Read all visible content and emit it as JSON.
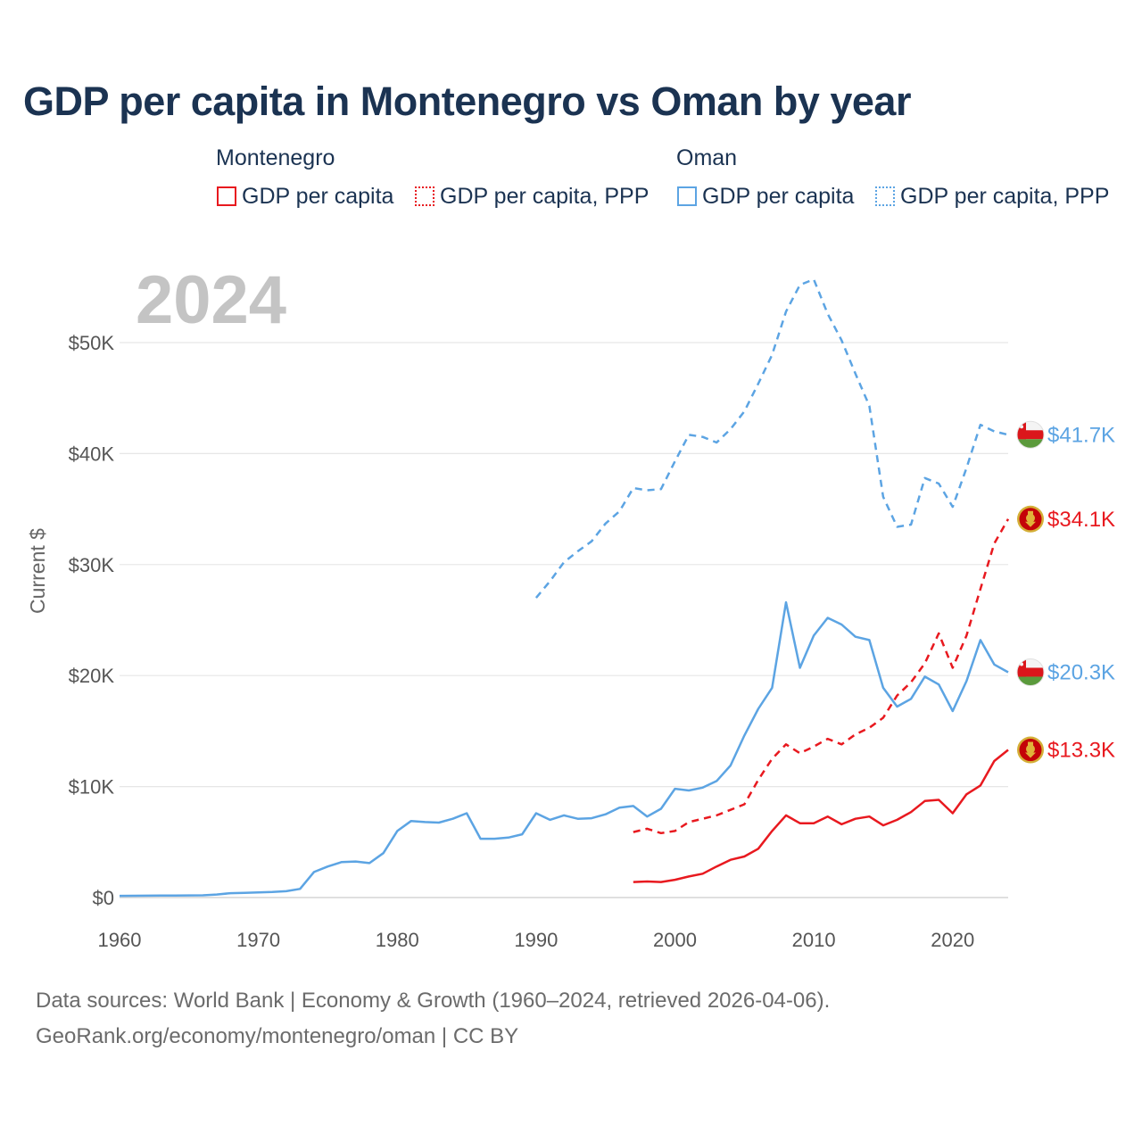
{
  "title": "GDP per capita in Montenegro vs Oman by year",
  "legend": {
    "groups": [
      {
        "name": "Montenegro",
        "items": [
          "GDP per capita",
          "GDP per capita, PPP"
        ]
      },
      {
        "name": "Oman",
        "items": [
          "GDP per capita",
          "GDP per capita, PPP"
        ]
      }
    ]
  },
  "colors": {
    "montenegro": "#e8191f",
    "oman": "#5ca4e3",
    "grid": "#e6e6e6",
    "axis": "#cccccc"
  },
  "footer": {
    "line1": "Data sources: World Bank | Economy & Growth (1960–2024, retrieved 2026-04-06).",
    "line2": "GeoRank.org/economy/montenegro/oman | CC BY"
  },
  "chart_data": {
    "type": "line",
    "year_display": "2024",
    "ylabel": "Current $",
    "xlim": [
      1960,
      2024
    ],
    "ylim": [
      0,
      56000
    ],
    "x_ticks": [
      1960,
      1970,
      1980,
      1990,
      2000,
      2010,
      2020
    ],
    "x_tick_labels": [
      "1960",
      "1970",
      "1980",
      "1990",
      "2000",
      "2010",
      "2020"
    ],
    "y_ticks": [
      0,
      10000,
      20000,
      30000,
      40000,
      50000
    ],
    "y_tick_labels": [
      "$0",
      "$10K",
      "$20K",
      "$30K",
      "$40K",
      "$50K"
    ],
    "series": [
      {
        "key": "omn_ppp",
        "name": "Oman GDP per capita, PPP",
        "country": "oman",
        "style": "dashed",
        "end_label": "$41.7K",
        "start_year": 1990,
        "values": [
          27000,
          28500,
          30200,
          31200,
          32100,
          33700,
          34800,
          36900,
          36700,
          36800,
          39300,
          41700,
          41500,
          41000,
          42200,
          43800,
          46300,
          48900,
          52800,
          55200,
          55700,
          52600,
          50200,
          47200,
          44300,
          36100,
          33400,
          33600,
          37800,
          37300,
          35200,
          38700,
          42600,
          42000,
          41700
        ]
      },
      {
        "key": "mne_ppp",
        "name": "Montenegro GDP per capita, PPP",
        "country": "montenegro",
        "style": "dashed",
        "end_label": "$34.1K",
        "start_year": 1997,
        "values": [
          5900,
          6200,
          5800,
          6000,
          6800,
          7100,
          7400,
          7900,
          8400,
          10600,
          12500,
          13800,
          13000,
          13600,
          14300,
          13800,
          14700,
          15300,
          16200,
          18200,
          19400,
          21100,
          23800,
          20700,
          23600,
          27800,
          31900,
          34100
        ]
      },
      {
        "key": "omn_gdp",
        "name": "Oman GDP per capita",
        "country": "oman",
        "style": "solid",
        "end_label": "$20.3K",
        "start_year": 1960,
        "values": [
          150,
          160,
          170,
          180,
          180,
          190,
          200,
          270,
          390,
          430,
          460,
          500,
          570,
          780,
          2300,
          2800,
          3200,
          3250,
          3100,
          4000,
          6000,
          6900,
          6800,
          6750,
          7100,
          7600,
          5300,
          5300,
          5400,
          5700,
          7600,
          7000,
          7400,
          7100,
          7150,
          7500,
          8100,
          8250,
          7300,
          8000,
          9800,
          9650,
          9900,
          10500,
          11900,
          14600,
          17000,
          18900,
          26600,
          20700,
          23600,
          25200,
          24600,
          23500,
          23200,
          18900,
          17200,
          17900,
          19900,
          19200,
          16800,
          19500,
          23200,
          21000,
          20300
        ]
      },
      {
        "key": "mne_gdp",
        "name": "Montenegro GDP per capita",
        "country": "montenegro",
        "style": "solid",
        "end_label": "$13.3K",
        "start_year": 1997,
        "values": [
          1400,
          1450,
          1400,
          1600,
          1900,
          2150,
          2800,
          3400,
          3700,
          4400,
          6000,
          7400,
          6700,
          6700,
          7300,
          6600,
          7100,
          7300,
          6500,
          7000,
          7700,
          8700,
          8800,
          7600,
          9300,
          10100,
          12300,
          13300
        ]
      }
    ]
  }
}
